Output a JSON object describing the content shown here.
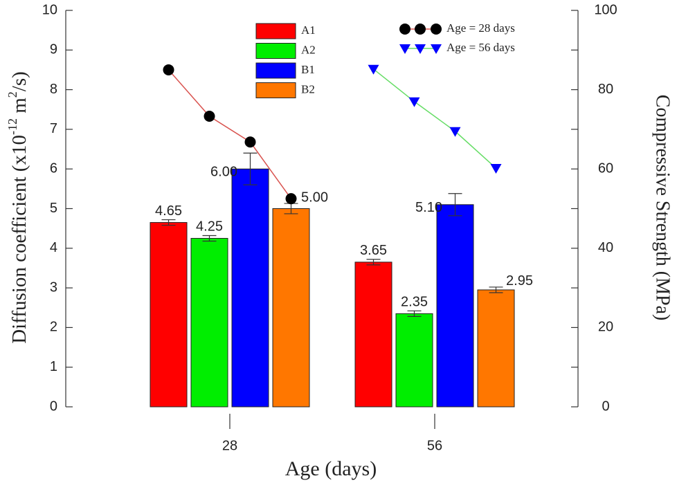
{
  "chart_data": {
    "type": "bar",
    "x_label": "Age (days)",
    "y_label": [
      "Diffusion coefficient (x10",
      "-12",
      " m",
      "2",
      "/s)"
    ],
    "y2_label": "Compressive Strength (MPa)",
    "categories": [
      "28",
      "56"
    ],
    "series": [
      {
        "name": "A1",
        "color": "#ff0000",
        "values": [
          4.65,
          3.65
        ],
        "errors": [
          0.07,
          0.07
        ],
        "value_labels": [
          "4.65",
          "3.65"
        ]
      },
      {
        "name": "A2",
        "color": "#00ee00",
        "values": [
          4.25,
          2.35
        ],
        "errors": [
          0.07,
          0.07
        ],
        "value_labels": [
          "4.25",
          "2.35"
        ]
      },
      {
        "name": "B1",
        "color": "#0000ff",
        "values": [
          6.0,
          5.1
        ],
        "errors": [
          0.4,
          0.28
        ],
        "value_labels": [
          "6.00",
          "5.10"
        ]
      },
      {
        "name": "B2",
        "color": "#ff7700",
        "values": [
          5.0,
          2.95
        ],
        "errors": [
          0.13,
          0.07
        ],
        "value_labels": [
          "5.00",
          "2.95"
        ]
      }
    ],
    "line_series": [
      {
        "name": "Age = 28 days",
        "color": "#000000",
        "line_color": "#d9534f",
        "marker": "circle",
        "axis": "y2",
        "values": [
          85,
          73.3,
          66.8,
          52.5
        ]
      },
      {
        "name": "Age = 56 days",
        "color": "#0000ff",
        "line_color": "#66dd66",
        "marker": "triangle-down",
        "axis": "y2",
        "values": [
          85.2,
          77,
          69.5,
          60.2
        ]
      }
    ],
    "ylim": [
      0,
      10
    ],
    "yticks": [
      0,
      1,
      2,
      3,
      4,
      5,
      6,
      7,
      8,
      9,
      10
    ],
    "y2lim": [
      0,
      100
    ],
    "y2ticks": [
      0,
      20,
      40,
      60,
      80,
      100
    ],
    "y2minor_ticks": [
      10,
      30,
      50,
      70,
      90
    ]
  }
}
